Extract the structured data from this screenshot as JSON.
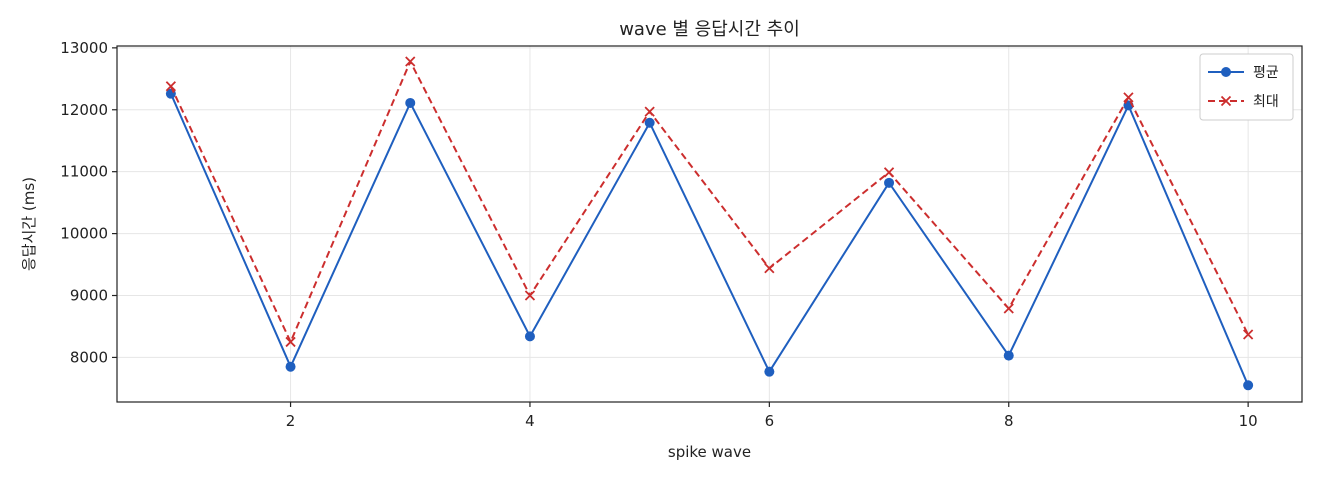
{
  "chart_data": {
    "type": "line",
    "title": "wave 별 응답시간 추이",
    "xlabel": "spike wave",
    "ylabel": "응답시간 (ms)",
    "x": [
      1,
      2,
      3,
      4,
      5,
      6,
      7,
      8,
      9,
      10
    ],
    "xlim": [
      0.55,
      10.45
    ],
    "ylim": [
      7280,
      13030
    ],
    "xticks": [
      2,
      4,
      6,
      8,
      10
    ],
    "yticks": [
      8000,
      9000,
      10000,
      11000,
      12000,
      13000
    ],
    "grid": true,
    "legend_position": "top-right",
    "series": [
      {
        "name": "평균",
        "color": "#1f5fbf",
        "line_style": "solid",
        "marker": "circle",
        "values": [
          12260,
          7850,
          12110,
          8340,
          11790,
          7770,
          10820,
          8030,
          12070,
          7550
        ]
      },
      {
        "name": "최대",
        "color": "#cc2e2e",
        "line_style": "dashed",
        "marker": "x",
        "values": [
          12380,
          8250,
          12780,
          9000,
          11970,
          9440,
          10990,
          8790,
          12200,
          8370
        ]
      }
    ]
  }
}
